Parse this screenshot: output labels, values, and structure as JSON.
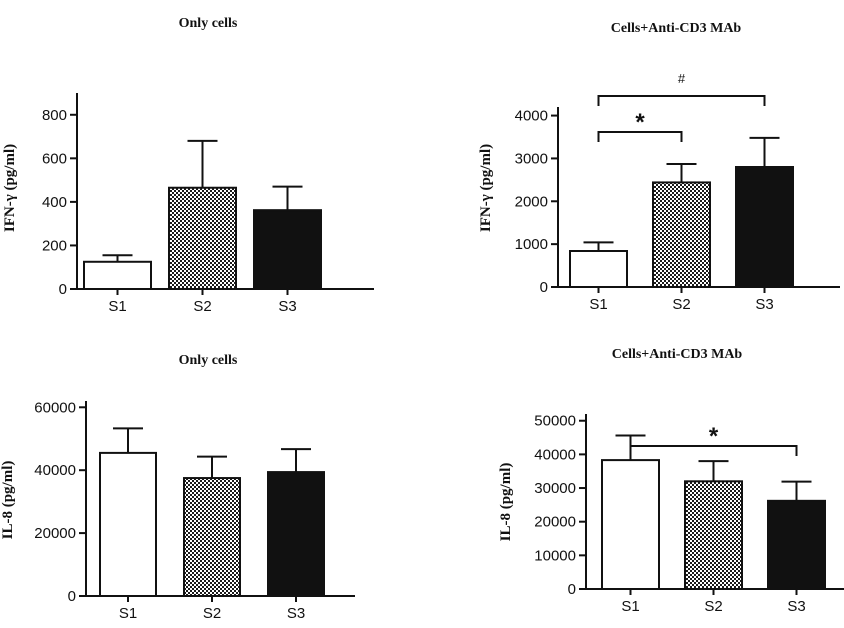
{
  "chart_data": [
    {
      "type": "bar",
      "title": "Only cells",
      "ylabel": "IFN-γ (pg/ml)",
      "xlabel": "",
      "categories": [
        "S1",
        "S2",
        "S3"
      ],
      "values": [
        125,
        465,
        362
      ],
      "errors": [
        30,
        215,
        108
      ],
      "ylim": [
        0,
        900
      ],
      "yticks": [
        0,
        200,
        400,
        600,
        800
      ],
      "fills": [
        "white",
        "checker",
        "black"
      ],
      "significance": []
    },
    {
      "type": "bar",
      "title": "Cells+Anti-CD3 MAb",
      "ylabel": "IFN-γ (pg/ml)",
      "xlabel": "",
      "categories": [
        "S1",
        "S2",
        "S3"
      ],
      "values": [
        840,
        2440,
        2800
      ],
      "errors": [
        200,
        430,
        680
      ],
      "ylim": [
        0,
        4200
      ],
      "yticks": [
        0,
        1000,
        2000,
        3000,
        4000
      ],
      "fills": [
        "white",
        "checker",
        "black"
      ],
      "significance": [
        {
          "from": 0,
          "to": 1,
          "label": "*"
        },
        {
          "from": 0,
          "to": 2,
          "label": "#"
        }
      ]
    },
    {
      "type": "bar",
      "title": "Only cells",
      "ylabel": "IL-8 (pg/ml)",
      "xlabel": "",
      "categories": [
        "S1",
        "S2",
        "S3"
      ],
      "values": [
        45500,
        37500,
        39400
      ],
      "errors": [
        7800,
        6800,
        7300
      ],
      "ylim": [
        0,
        62000
      ],
      "yticks": [
        0,
        20000,
        40000,
        60000
      ],
      "fills": [
        "white",
        "checker",
        "black"
      ],
      "significance": []
    },
    {
      "type": "bar",
      "title": "Cells+Anti-CD3 MAb",
      "ylabel": "IL-8 (pg/ml)",
      "xlabel": "",
      "categories": [
        "S1",
        "S2",
        "S3"
      ],
      "values": [
        38300,
        32000,
        26200
      ],
      "errors": [
        7300,
        6000,
        5700
      ],
      "ylim": [
        0,
        52000
      ],
      "yticks": [
        0,
        10000,
        20000,
        30000,
        40000,
        50000
      ],
      "fills": [
        "white",
        "checker",
        "black"
      ],
      "significance": [
        {
          "from": 0,
          "to": 2,
          "label": "*"
        }
      ]
    }
  ]
}
